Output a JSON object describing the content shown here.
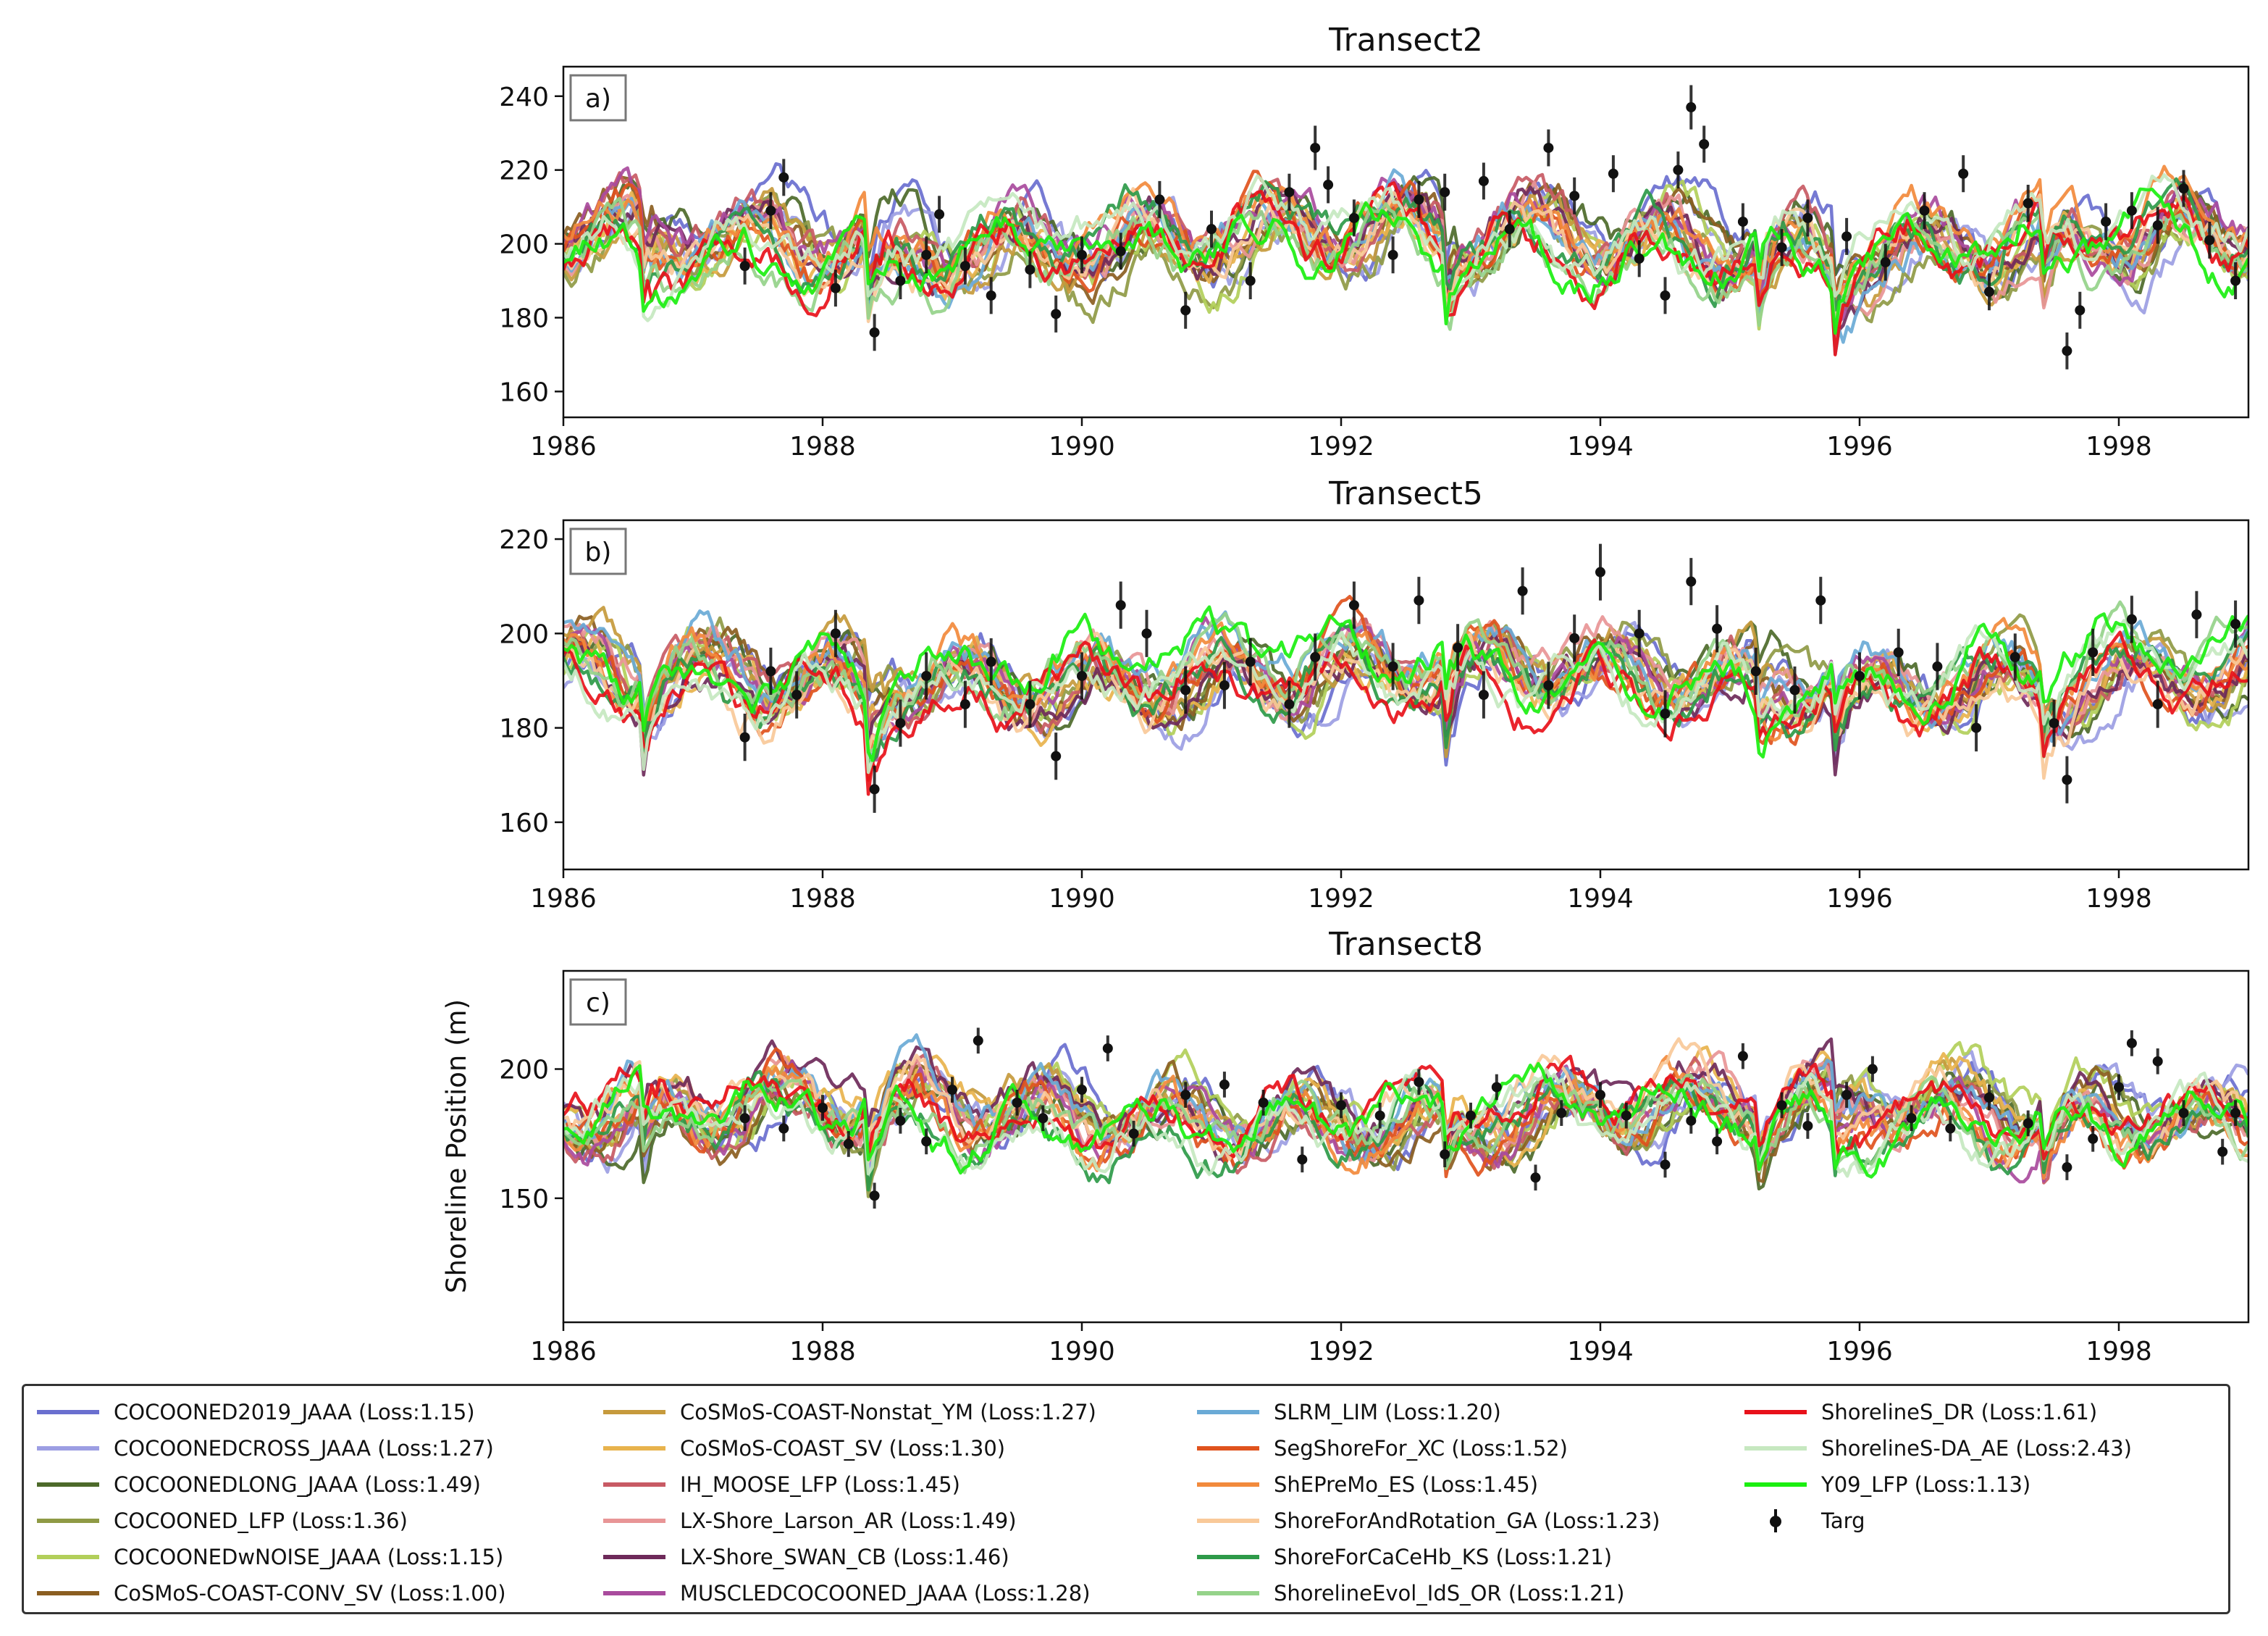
{
  "figure": {
    "ylabel": "Shoreline Position (m)"
  },
  "chart_data": [
    {
      "type": "line",
      "title": "Transect2",
      "panel_label": "a)",
      "xlabel": "",
      "ylabel": "",
      "xlim": [
        1986,
        1999
      ],
      "ylim": [
        153,
        248
      ],
      "xticks": [
        "1986",
        "1988",
        "1990",
        "1992",
        "1994",
        "1996",
        "1998"
      ],
      "yticks": [
        160,
        180,
        200,
        220,
        240
      ],
      "series_level": 201,
      "series_amp": 12,
      "target_points": [
        {
          "x": 1987.4,
          "y": 194,
          "err": 5
        },
        {
          "x": 1987.6,
          "y": 209,
          "err": 5
        },
        {
          "x": 1987.7,
          "y": 218,
          "err": 5
        },
        {
          "x": 1988.1,
          "y": 188,
          "err": 5
        },
        {
          "x": 1988.4,
          "y": 176,
          "err": 5
        },
        {
          "x": 1988.6,
          "y": 190,
          "err": 5
        },
        {
          "x": 1988.8,
          "y": 197,
          "err": 5
        },
        {
          "x": 1988.9,
          "y": 208,
          "err": 5
        },
        {
          "x": 1989.1,
          "y": 194,
          "err": 5
        },
        {
          "x": 1989.3,
          "y": 186,
          "err": 5
        },
        {
          "x": 1989.6,
          "y": 193,
          "err": 5
        },
        {
          "x": 1989.8,
          "y": 181,
          "err": 5
        },
        {
          "x": 1990.0,
          "y": 197,
          "err": 5
        },
        {
          "x": 1990.3,
          "y": 198,
          "err": 5
        },
        {
          "x": 1990.6,
          "y": 212,
          "err": 5
        },
        {
          "x": 1990.8,
          "y": 182,
          "err": 5
        },
        {
          "x": 1991.0,
          "y": 204,
          "err": 5
        },
        {
          "x": 1991.3,
          "y": 190,
          "err": 5
        },
        {
          "x": 1991.6,
          "y": 214,
          "err": 5
        },
        {
          "x": 1991.8,
          "y": 226,
          "err": 6
        },
        {
          "x": 1991.9,
          "y": 216,
          "err": 5
        },
        {
          "x": 1992.1,
          "y": 207,
          "err": 5
        },
        {
          "x": 1992.4,
          "y": 197,
          "err": 5
        },
        {
          "x": 1992.6,
          "y": 212,
          "err": 5
        },
        {
          "x": 1992.8,
          "y": 214,
          "err": 5
        },
        {
          "x": 1993.1,
          "y": 217,
          "err": 5
        },
        {
          "x": 1993.3,
          "y": 204,
          "err": 5
        },
        {
          "x": 1993.6,
          "y": 226,
          "err": 5
        },
        {
          "x": 1993.8,
          "y": 213,
          "err": 5
        },
        {
          "x": 1994.1,
          "y": 219,
          "err": 5
        },
        {
          "x": 1994.3,
          "y": 196,
          "err": 5
        },
        {
          "x": 1994.5,
          "y": 186,
          "err": 5
        },
        {
          "x": 1994.6,
          "y": 220,
          "err": 5
        },
        {
          "x": 1994.7,
          "y": 237,
          "err": 6
        },
        {
          "x": 1994.8,
          "y": 227,
          "err": 5
        },
        {
          "x": 1995.1,
          "y": 206,
          "err": 5
        },
        {
          "x": 1995.4,
          "y": 199,
          "err": 5
        },
        {
          "x": 1995.6,
          "y": 207,
          "err": 5
        },
        {
          "x": 1995.9,
          "y": 202,
          "err": 5
        },
        {
          "x": 1996.2,
          "y": 195,
          "err": 5
        },
        {
          "x": 1996.5,
          "y": 209,
          "err": 5
        },
        {
          "x": 1996.8,
          "y": 219,
          "err": 5
        },
        {
          "x": 1997.0,
          "y": 187,
          "err": 5
        },
        {
          "x": 1997.3,
          "y": 211,
          "err": 5
        },
        {
          "x": 1997.6,
          "y": 171,
          "err": 5
        },
        {
          "x": 1997.7,
          "y": 182,
          "err": 5
        },
        {
          "x": 1997.9,
          "y": 206,
          "err": 5
        },
        {
          "x": 1998.1,
          "y": 209,
          "err": 5
        },
        {
          "x": 1998.3,
          "y": 205,
          "err": 5
        },
        {
          "x": 1998.5,
          "y": 215,
          "err": 5
        },
        {
          "x": 1998.7,
          "y": 201,
          "err": 5
        },
        {
          "x": 1998.9,
          "y": 190,
          "err": 5
        }
      ]
    },
    {
      "type": "line",
      "title": "Transect5",
      "panel_label": "b)",
      "xlabel": "",
      "ylabel": "",
      "xlim": [
        1986,
        1999
      ],
      "ylim": [
        150,
        224
      ],
      "xticks": [
        "1986",
        "1988",
        "1990",
        "1992",
        "1994",
        "1996",
        "1998"
      ],
      "yticks": [
        160,
        180,
        200,
        220
      ],
      "series_level": 191,
      "series_amp": 9,
      "target_points": [
        {
          "x": 1987.4,
          "y": 178,
          "err": 5
        },
        {
          "x": 1987.6,
          "y": 192,
          "err": 5
        },
        {
          "x": 1987.8,
          "y": 187,
          "err": 5
        },
        {
          "x": 1988.1,
          "y": 200,
          "err": 5
        },
        {
          "x": 1988.4,
          "y": 167,
          "err": 5
        },
        {
          "x": 1988.6,
          "y": 181,
          "err": 5
        },
        {
          "x": 1988.8,
          "y": 191,
          "err": 5
        },
        {
          "x": 1989.1,
          "y": 185,
          "err": 5
        },
        {
          "x": 1989.3,
          "y": 194,
          "err": 5
        },
        {
          "x": 1989.6,
          "y": 185,
          "err": 5
        },
        {
          "x": 1989.8,
          "y": 174,
          "err": 5
        },
        {
          "x": 1990.0,
          "y": 191,
          "err": 5
        },
        {
          "x": 1990.3,
          "y": 206,
          "err": 5
        },
        {
          "x": 1990.5,
          "y": 200,
          "err": 5
        },
        {
          "x": 1990.8,
          "y": 188,
          "err": 5
        },
        {
          "x": 1991.1,
          "y": 189,
          "err": 5
        },
        {
          "x": 1991.3,
          "y": 194,
          "err": 5
        },
        {
          "x": 1991.6,
          "y": 185,
          "err": 5
        },
        {
          "x": 1991.8,
          "y": 195,
          "err": 5
        },
        {
          "x": 1992.1,
          "y": 206,
          "err": 5
        },
        {
          "x": 1992.4,
          "y": 193,
          "err": 5
        },
        {
          "x": 1992.6,
          "y": 207,
          "err": 5
        },
        {
          "x": 1992.9,
          "y": 197,
          "err": 5
        },
        {
          "x": 1993.1,
          "y": 187,
          "err": 5
        },
        {
          "x": 1993.4,
          "y": 209,
          "err": 5
        },
        {
          "x": 1993.6,
          "y": 189,
          "err": 5
        },
        {
          "x": 1993.8,
          "y": 199,
          "err": 5
        },
        {
          "x": 1994.0,
          "y": 213,
          "err": 6
        },
        {
          "x": 1994.3,
          "y": 200,
          "err": 5
        },
        {
          "x": 1994.5,
          "y": 183,
          "err": 5
        },
        {
          "x": 1994.7,
          "y": 211,
          "err": 5
        },
        {
          "x": 1994.9,
          "y": 201,
          "err": 5
        },
        {
          "x": 1995.2,
          "y": 192,
          "err": 5
        },
        {
          "x": 1995.5,
          "y": 188,
          "err": 5
        },
        {
          "x": 1995.7,
          "y": 207,
          "err": 5
        },
        {
          "x": 1996.0,
          "y": 191,
          "err": 5
        },
        {
          "x": 1996.3,
          "y": 196,
          "err": 5
        },
        {
          "x": 1996.6,
          "y": 193,
          "err": 5
        },
        {
          "x": 1996.9,
          "y": 180,
          "err": 5
        },
        {
          "x": 1997.2,
          "y": 195,
          "err": 5
        },
        {
          "x": 1997.5,
          "y": 181,
          "err": 5
        },
        {
          "x": 1997.6,
          "y": 169,
          "err": 5
        },
        {
          "x": 1997.8,
          "y": 196,
          "err": 5
        },
        {
          "x": 1998.1,
          "y": 203,
          "err": 5
        },
        {
          "x": 1998.3,
          "y": 185,
          "err": 5
        },
        {
          "x": 1998.6,
          "y": 204,
          "err": 5
        },
        {
          "x": 1998.9,
          "y": 202,
          "err": 5
        }
      ]
    },
    {
      "type": "line",
      "title": "Transect8",
      "panel_label": "c)",
      "xlabel": "",
      "ylabel": "Shoreline Position (m)",
      "xlim": [
        1986,
        1999
      ],
      "ylim": [
        102,
        238
      ],
      "xticks": [
        "1986",
        "1988",
        "1990",
        "1992",
        "1994",
        "1996",
        "1998"
      ],
      "yticks": [
        150,
        200
      ],
      "series_level": 183,
      "series_amp": 16,
      "target_points": [
        {
          "x": 1987.4,
          "y": 181,
          "err": 5
        },
        {
          "x": 1987.7,
          "y": 177,
          "err": 5
        },
        {
          "x": 1988.0,
          "y": 185,
          "err": 5
        },
        {
          "x": 1988.2,
          "y": 171,
          "err": 5
        },
        {
          "x": 1988.4,
          "y": 151,
          "err": 5
        },
        {
          "x": 1988.6,
          "y": 180,
          "err": 5
        },
        {
          "x": 1988.8,
          "y": 172,
          "err": 5
        },
        {
          "x": 1989.0,
          "y": 192,
          "err": 5
        },
        {
          "x": 1989.2,
          "y": 211,
          "err": 5
        },
        {
          "x": 1989.5,
          "y": 187,
          "err": 5
        },
        {
          "x": 1989.7,
          "y": 181,
          "err": 5
        },
        {
          "x": 1990.0,
          "y": 192,
          "err": 5
        },
        {
          "x": 1990.2,
          "y": 208,
          "err": 5
        },
        {
          "x": 1990.4,
          "y": 175,
          "err": 5
        },
        {
          "x": 1990.8,
          "y": 190,
          "err": 5
        },
        {
          "x": 1991.1,
          "y": 194,
          "err": 5
        },
        {
          "x": 1991.4,
          "y": 187,
          "err": 5
        },
        {
          "x": 1991.7,
          "y": 165,
          "err": 5
        },
        {
          "x": 1992.0,
          "y": 186,
          "err": 5
        },
        {
          "x": 1992.3,
          "y": 182,
          "err": 5
        },
        {
          "x": 1992.6,
          "y": 195,
          "err": 5
        },
        {
          "x": 1992.8,
          "y": 167,
          "err": 5
        },
        {
          "x": 1993.0,
          "y": 182,
          "err": 5
        },
        {
          "x": 1993.2,
          "y": 193,
          "err": 5
        },
        {
          "x": 1993.5,
          "y": 158,
          "err": 5
        },
        {
          "x": 1993.7,
          "y": 183,
          "err": 5
        },
        {
          "x": 1994.0,
          "y": 190,
          "err": 5
        },
        {
          "x": 1994.2,
          "y": 182,
          "err": 5
        },
        {
          "x": 1994.5,
          "y": 163,
          "err": 5
        },
        {
          "x": 1994.7,
          "y": 180,
          "err": 5
        },
        {
          "x": 1994.9,
          "y": 172,
          "err": 5
        },
        {
          "x": 1995.1,
          "y": 205,
          "err": 5
        },
        {
          "x": 1995.4,
          "y": 186,
          "err": 5
        },
        {
          "x": 1995.6,
          "y": 178,
          "err": 5
        },
        {
          "x": 1995.9,
          "y": 190,
          "err": 5
        },
        {
          "x": 1996.1,
          "y": 200,
          "err": 5
        },
        {
          "x": 1996.4,
          "y": 181,
          "err": 5
        },
        {
          "x": 1996.7,
          "y": 177,
          "err": 5
        },
        {
          "x": 1997.0,
          "y": 189,
          "err": 5
        },
        {
          "x": 1997.3,
          "y": 179,
          "err": 5
        },
        {
          "x": 1997.6,
          "y": 162,
          "err": 5
        },
        {
          "x": 1997.8,
          "y": 173,
          "err": 5
        },
        {
          "x": 1998.0,
          "y": 193,
          "err": 5
        },
        {
          "x": 1998.1,
          "y": 210,
          "err": 5
        },
        {
          "x": 1998.3,
          "y": 203,
          "err": 5
        },
        {
          "x": 1998.5,
          "y": 183,
          "err": 5
        },
        {
          "x": 1998.8,
          "y": 168,
          "err": 5
        },
        {
          "x": 1998.9,
          "y": 183,
          "err": 5
        }
      ]
    }
  ],
  "legend": {
    "items": [
      {
        "label": "COCOONED2019_JAAA (Loss:1.15)",
        "color": "#6a6fcf"
      },
      {
        "label": "COCOONEDCROSS_JAAA (Loss:1.27)",
        "color": "#9c9ee3"
      },
      {
        "label": "COCOONEDLONG_JAAA (Loss:1.49)",
        "color": "#4d6a2a"
      },
      {
        "label": "COCOONED_LFP (Loss:1.36)",
        "color": "#8f9a45"
      },
      {
        "label": "COCOONEDwNOISE_JAAA (Loss:1.15)",
        "color": "#b2cf5a"
      },
      {
        "label": "CoSMoS-COAST-CONV_SV (Loss:1.00)",
        "color": "#8b5e21"
      },
      {
        "label": "CoSMoS-COAST-Nonstat_YM (Loss:1.27)",
        "color": "#c69a3c"
      },
      {
        "label": "CoSMoS-COAST_SV (Loss:1.30)",
        "color": "#e8b34d"
      },
      {
        "label": "IH_MOOSE_LFP (Loss:1.45)",
        "color": "#c85a64"
      },
      {
        "label": "LX-Shore_Larson_AR (Loss:1.49)",
        "color": "#e89596"
      },
      {
        "label": "LX-Shore_SWAN_CB (Loss:1.46)",
        "color": "#6e2a5a"
      },
      {
        "label": "MUSCLEDCOCOONED_JAAA (Loss:1.28)",
        "color": "#a94b9d"
      },
      {
        "label": "SLRM_LIM (Loss:1.20)",
        "color": "#6aaad6"
      },
      {
        "label": "SegShoreFor_XC (Loss:1.52)",
        "color": "#e0531d"
      },
      {
        "label": "ShEPreMo_ES (Loss:1.45)",
        "color": "#f28a3c"
      },
      {
        "label": "ShoreForAndRotation_GA (Loss:1.23)",
        "color": "#f9c999"
      },
      {
        "label": "ShoreForCaCeHb_KS (Loss:1.21)",
        "color": "#2e9a49"
      },
      {
        "label": "ShorelineEvol_IdS_OR (Loss:1.21)",
        "color": "#95d38a"
      },
      {
        "label": "ShorelineS_DR (Loss:1.61)",
        "color": "#e8111a"
      },
      {
        "label": "ShorelineS-DA_AE (Loss:2.43)",
        "color": "#c6e8c0"
      },
      {
        "label": "Y09_LFP (Loss:1.13)",
        "color": "#1bef10"
      },
      {
        "label": "Targ",
        "color": "#111111",
        "marker": "errorbar"
      }
    ]
  }
}
